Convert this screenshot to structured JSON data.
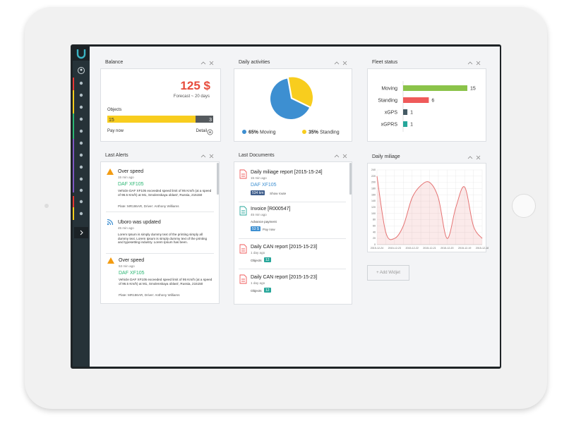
{
  "balance": {
    "title": "Balance",
    "amount": "125 $",
    "forecast": "Forecast ~ 20 days",
    "objects_label": "Objects",
    "objects": {
      "values": [
        15,
        3
      ],
      "colors": [
        "#f8cd1e",
        "#555a5e"
      ]
    },
    "pay": "Pay now",
    "detail": "Detail"
  },
  "chart_data": [
    {
      "type": "pie",
      "title": "Daily activities",
      "categories": [
        "Moving",
        "Standing"
      ],
      "values": [
        65,
        35
      ],
      "value_labels": [
        "65%",
        "35%"
      ],
      "colors": [
        "#3d8fd1",
        "#f8cd1e"
      ]
    },
    {
      "type": "bar",
      "title": "Fleet status",
      "categories": [
        "Moving",
        "Standing",
        "xGPS",
        "xGPRS"
      ],
      "values": [
        15,
        6,
        1,
        1
      ],
      "colors": [
        "#8bc34a",
        "#ef5a5a",
        "#455a64",
        "#26a69a"
      ]
    },
    {
      "type": "line",
      "title": "Daily miliage",
      "categories": [
        "2015-12-24",
        null,
        "2015-12-23",
        null,
        "2015-12-22",
        null,
        "2015-12-21",
        null,
        "2015-12-20",
        null,
        "2015-12-19",
        null,
        "2015-12-18"
      ],
      "values": [
        220,
        40,
        20,
        60,
        150,
        190,
        200,
        150,
        20,
        120,
        185,
        60,
        20
      ],
      "color": "#e57373",
      "ylim": [
        0,
        240
      ],
      "yticks": [
        0,
        20,
        40,
        60,
        80,
        100,
        120,
        140,
        160,
        180,
        200,
        220,
        240
      ],
      "grid": true
    }
  ],
  "alerts": {
    "title": "Last Alerts",
    "items": [
      {
        "title": "Over speed",
        "time": "15 min ago",
        "vehicle": "DAF XF105",
        "text": "Vehicle DAF XF105 exceeded speed limit of 95 Km/h (at a speed of 96.5 Km/h) at M1, Smolenskaya oblast', Russia, 215150",
        "plate": "Plate: MR186AR, Driver: Anthony Williams"
      },
      {
        "title": "Uboro was updated",
        "time": "45 min ago",
        "text": "Lorem Ipsum is simply dummy text of the printing simply all dummy text. Lorem Ipsum is simply dummy text of the printing and typesetting industry. Lorem Ipsum has been."
      },
      {
        "title": "Over speed",
        "time": "53 min ago",
        "vehicle": "DAF XF105",
        "text": "Vehicle DAF XF105 exceeded speed limit of 95 Km/h (at a speed of 96.5 Km/h) at M1, Smolenskaya oblast', Russia, 215150",
        "plate": "Plate: MR186AR, Driver: Anthony Williams"
      }
    ]
  },
  "documents": {
    "title": "Last Documents",
    "items": [
      {
        "title": "Daily miliage report [2015-15-24]",
        "time": "15 min ago",
        "vehicle": "DAF XF105",
        "badge": "534 km",
        "action": "Show route"
      },
      {
        "title": "Invoice [R000547]",
        "time": "45 min ago",
        "label": "Advance payment",
        "badge": "53 $",
        "action": "Pay now"
      },
      {
        "title": "Daily CAN report [2015-15-23]",
        "time": "1 day ago",
        "label": "Objects",
        "badge": "12"
      },
      {
        "title": "Daily CAN report [2015-15-23]",
        "time": "1 day ago",
        "label": "Objects",
        "badge": "12"
      }
    ]
  },
  "add_widget": "+ Add Widjet"
}
